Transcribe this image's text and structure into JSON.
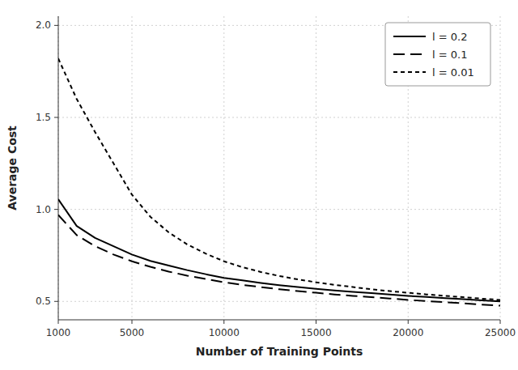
{
  "chart_data": {
    "type": "line",
    "xlabel": "Number of Training Points",
    "ylabel": "Average Cost",
    "x": [
      1000,
      2000,
      3000,
      4000,
      5000,
      6000,
      7000,
      8000,
      9000,
      10000,
      11000,
      12000,
      13000,
      14000,
      15000,
      16000,
      17000,
      18000,
      19000,
      20000,
      21000,
      22000,
      23000,
      24000,
      25000
    ],
    "series": [
      {
        "name": "l = 0.2",
        "color": "#000000",
        "line_style": "solid",
        "values": [
          1.055,
          0.91,
          0.845,
          0.8,
          0.755,
          0.72,
          0.695,
          0.67,
          0.648,
          0.628,
          0.614,
          0.6,
          0.588,
          0.578,
          0.568,
          0.56,
          0.552,
          0.545,
          0.538,
          0.53,
          0.524,
          0.518,
          0.512,
          0.506,
          0.5
        ]
      },
      {
        "name": "l = 0.1",
        "color": "#000000",
        "line_style": "long-dash",
        "values": [
          0.97,
          0.86,
          0.8,
          0.755,
          0.718,
          0.688,
          0.662,
          0.64,
          0.622,
          0.604,
          0.59,
          0.578,
          0.566,
          0.556,
          0.547,
          0.538,
          0.53,
          0.523,
          0.516,
          0.508,
          0.502,
          0.496,
          0.49,
          0.483,
          0.477
        ]
      },
      {
        "name": "l = 0.01",
        "color": "#000000",
        "line_style": "dashed",
        "values": [
          1.82,
          1.6,
          1.42,
          1.25,
          1.08,
          0.96,
          0.875,
          0.81,
          0.76,
          0.718,
          0.686,
          0.66,
          0.638,
          0.62,
          0.604,
          0.59,
          0.578,
          0.566,
          0.556,
          0.547,
          0.538,
          0.53,
          0.523,
          0.515,
          0.508
        ]
      }
    ],
    "xlim": [
      1000,
      25000
    ],
    "ylim": [
      0.4,
      2.05
    ],
    "xticks": [
      1000,
      5000,
      10000,
      15000,
      20000,
      25000
    ],
    "yticks": [
      0.5,
      {
        "value": 1,
        "label": "1.0"
      },
      1.5,
      {
        "value": 2,
        "label": "2.0"
      }
    ],
    "grid": true,
    "legend": "upper-right"
  }
}
